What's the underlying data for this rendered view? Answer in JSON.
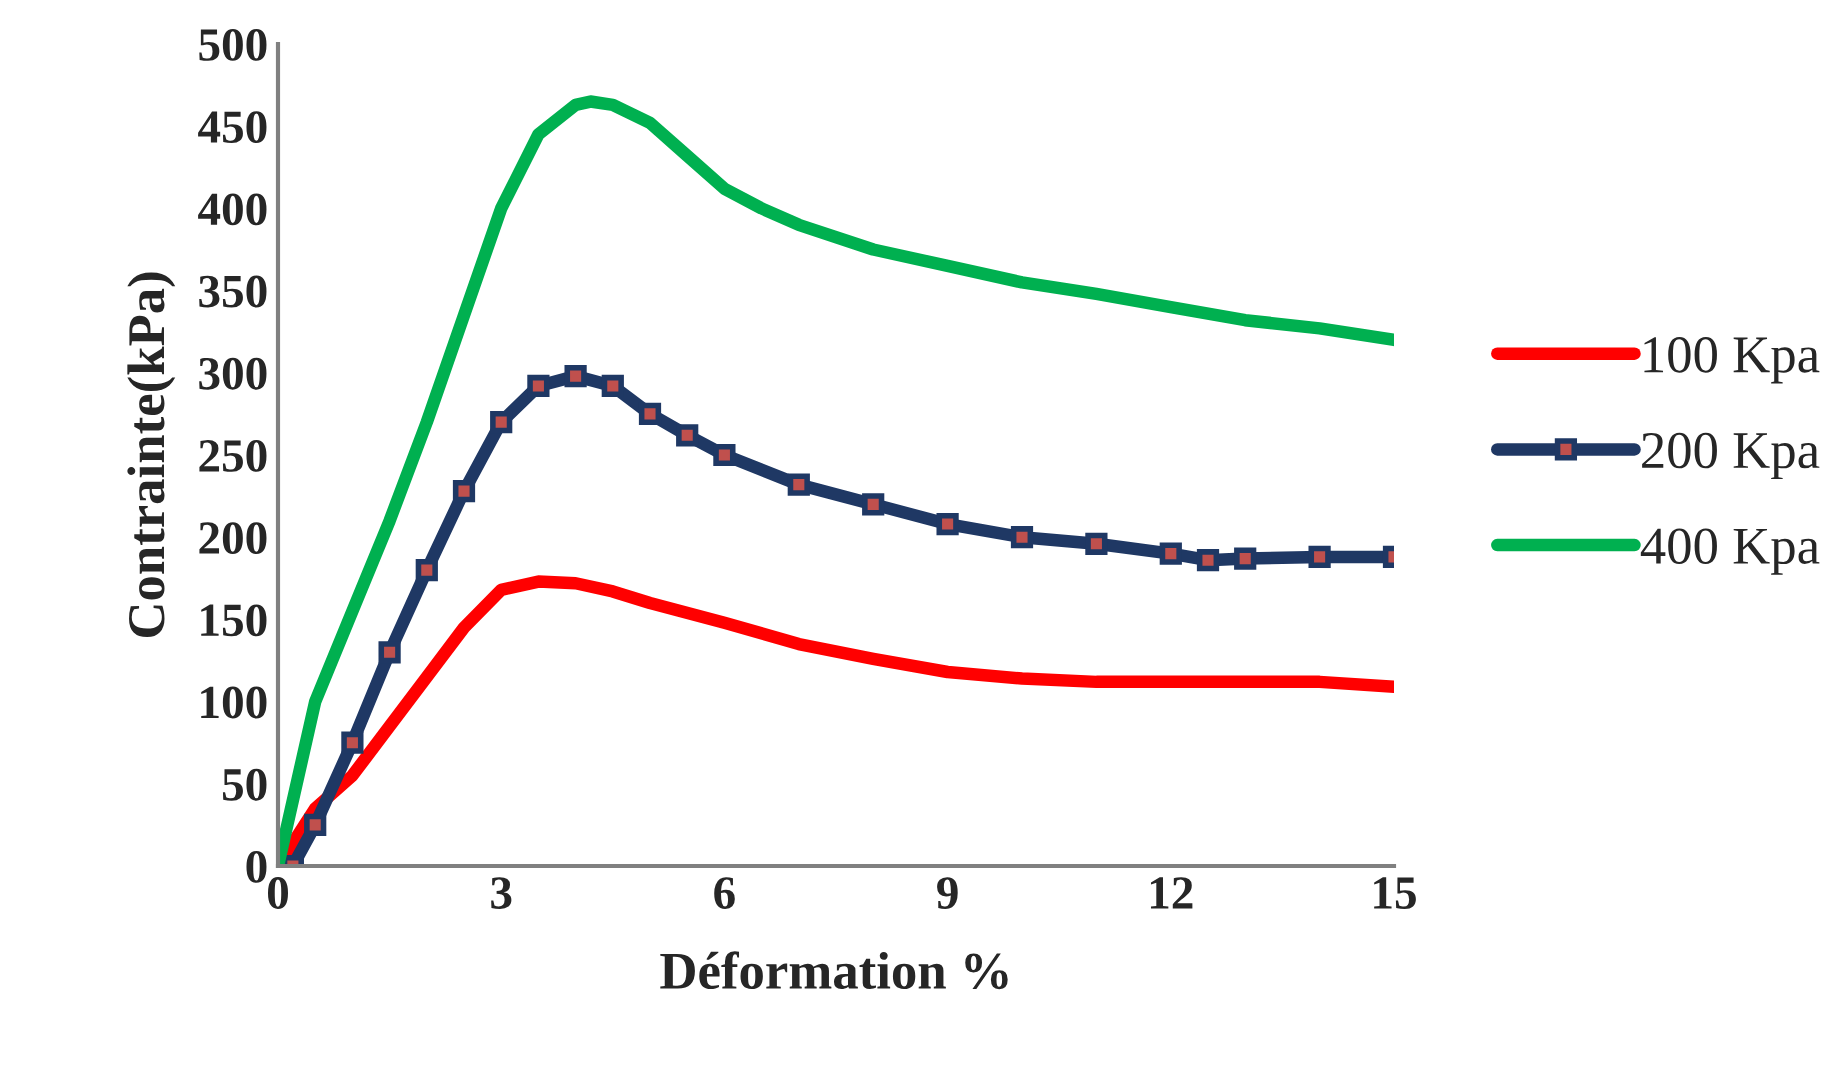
{
  "chart_data": {
    "type": "line",
    "xlabel": "Déformation %",
    "ylabel": "Contrainte(kPa)",
    "xlim": [
      0,
      15
    ],
    "xticks": [
      0,
      3,
      6,
      9,
      12,
      15
    ],
    "ylim": [
      0,
      500
    ],
    "yticks": [
      0,
      50,
      100,
      150,
      200,
      250,
      300,
      350,
      400,
      450,
      500
    ],
    "grid": false,
    "legend": "right",
    "series": [
      {
        "name": "100 Kpa",
        "color": "#ff0000",
        "marker": "none",
        "x": [
          0,
          0.5,
          1,
          1.5,
          2,
          2.5,
          3,
          3.5,
          4,
          4.5,
          5,
          6,
          7,
          8,
          9,
          10,
          11,
          12,
          13,
          14,
          15
        ],
        "values": [
          0,
          35,
          55,
          85,
          115,
          145,
          168,
          173,
          172,
          167,
          160,
          148,
          135,
          126,
          118,
          114,
          112,
          112,
          112,
          112,
          109
        ]
      },
      {
        "name": "200 Kpa",
        "color": "#1f3864",
        "marker": "square",
        "x": [
          0.2,
          0.5,
          1,
          1.5,
          2,
          2.5,
          3,
          3.5,
          4,
          4.5,
          5,
          5.5,
          6,
          7,
          8,
          9,
          10,
          11,
          12,
          12.5,
          13,
          14,
          15
        ],
        "values": [
          0,
          25,
          75,
          130,
          180,
          228,
          270,
          292,
          298,
          292,
          275,
          262,
          250,
          232,
          220,
          208,
          200,
          196,
          190,
          186,
          187,
          188,
          188
        ]
      },
      {
        "name": "400 Kpa",
        "color": "#00b050",
        "marker": "none",
        "x": [
          0,
          0.5,
          1,
          1.5,
          2,
          2.5,
          3,
          3.5,
          4,
          4.2,
          4.5,
          5,
          5.5,
          6,
          6.5,
          7,
          8,
          9,
          10,
          11,
          12,
          13,
          14,
          15
        ],
        "values": [
          0,
          100,
          155,
          210,
          270,
          335,
          400,
          445,
          463,
          465,
          463,
          452,
          432,
          412,
          400,
          390,
          375,
          365,
          355,
          348,
          340,
          332,
          327,
          320
        ]
      }
    ]
  }
}
